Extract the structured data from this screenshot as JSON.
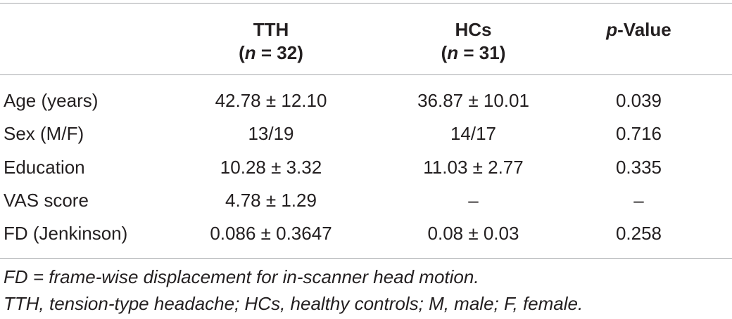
{
  "table": {
    "headers": [
      {
        "name": "TTH",
        "sub": [
          "(",
          "n",
          " = 32)"
        ]
      },
      {
        "name": "HCs",
        "sub": [
          "(",
          "n",
          " = 31)"
        ]
      },
      {
        "name": [
          "p",
          "-Value"
        ]
      }
    ],
    "rows": [
      [
        "Age (years)",
        "42.78 ± 12.10",
        "36.87 ± 10.01",
        "0.039"
      ],
      [
        "Sex (M/F)",
        "13/19",
        "14/17",
        "0.716"
      ],
      [
        "Education",
        "10.28 ± 3.32",
        "11.03 ± 2.77",
        "0.335"
      ],
      [
        "VAS score",
        "4.78 ± 1.29",
        "–",
        "–"
      ],
      [
        "FD (Jenkinson)",
        "0.086 ± 0.3647",
        "0.08 ± 0.03",
        "0.258"
      ]
    ],
    "footnotes": [
      "FD = frame-wise displacement for in-scanner head motion.",
      "TTH, tension-type headache; HCs, healthy controls; M, male; F, female."
    ]
  }
}
